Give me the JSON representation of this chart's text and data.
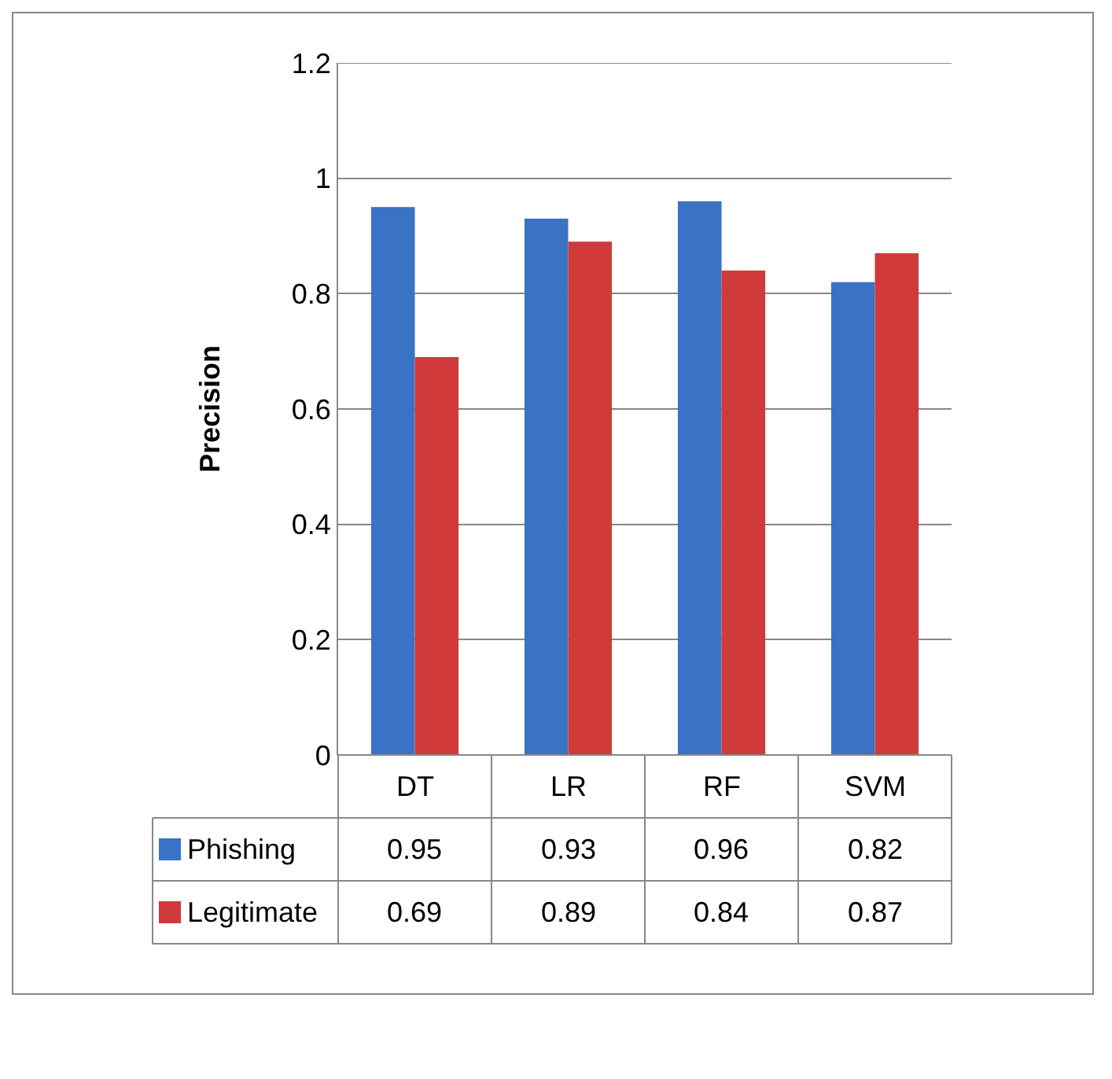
{
  "chart_data": {
    "type": "bar",
    "ylabel": "Precision",
    "categories": [
      "DT",
      "LR",
      "RF",
      "SVM"
    ],
    "series": [
      {
        "name": "Phishing",
        "color": "#3a72c6",
        "values": [
          0.95,
          0.93,
          0.96,
          0.82
        ]
      },
      {
        "name": "Legitimate",
        "color": "#d03a3a",
        "values": [
          0.69,
          0.89,
          0.84,
          0.87
        ]
      }
    ],
    "ylim": [
      0,
      1.2
    ],
    "yticks": [
      0,
      0.2,
      0.4,
      0.6,
      0.8,
      1,
      1.2
    ],
    "grid": "y",
    "data_labels": true,
    "legend": "bottom left"
  }
}
